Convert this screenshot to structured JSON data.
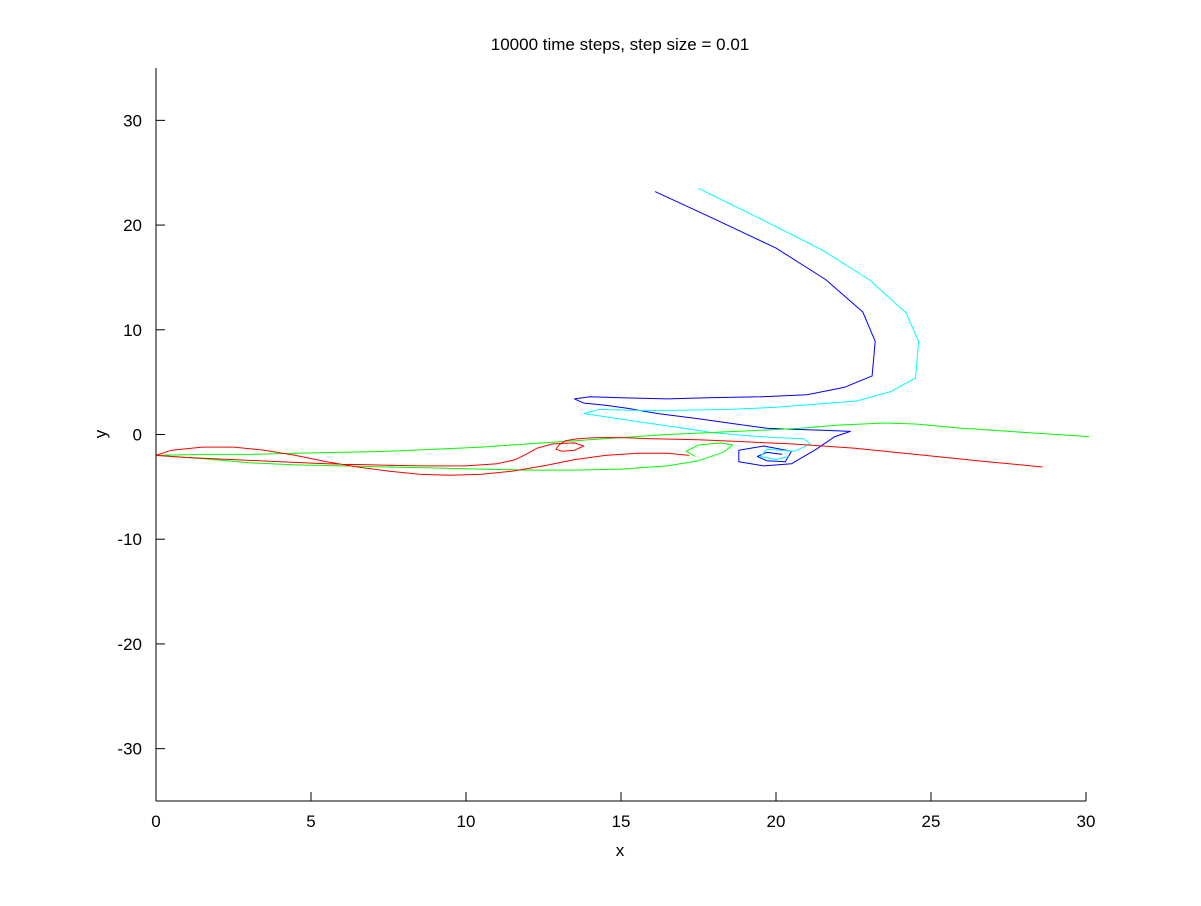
{
  "chart_data": {
    "type": "line",
    "title": "10000 time steps, step size = 0.01",
    "xlabel": "x",
    "ylabel": "y",
    "xlim": [
      0,
      30
    ],
    "ylim": [
      -35,
      35
    ],
    "xticks": [
      0,
      5,
      10,
      15,
      20,
      25,
      30
    ],
    "yticks": [
      -30,
      -20,
      -10,
      0,
      10,
      20,
      30
    ],
    "grid": false,
    "legend": "none",
    "series": [
      {
        "color": "#0000ff",
        "points": [
          [
            16.1,
            23.2
          ],
          [
            18,
            20.6
          ],
          [
            20,
            17.8
          ],
          [
            21.6,
            14.8
          ],
          [
            22.8,
            11.7
          ],
          [
            23.2,
            8.9
          ],
          [
            23.1,
            5.6
          ],
          [
            22.2,
            4.5
          ],
          [
            21,
            3.8
          ],
          [
            19.5,
            3.6
          ],
          [
            17.8,
            3.5
          ],
          [
            16.5,
            3.4
          ],
          [
            15,
            3.5
          ],
          [
            14,
            3.6
          ],
          [
            13.5,
            3.4
          ],
          [
            13.8,
            3
          ],
          [
            14.5,
            2.8
          ],
          [
            15.2,
            2.5
          ],
          [
            16.2,
            2
          ],
          [
            17.5,
            1.5
          ],
          [
            18.7,
            1
          ],
          [
            19.7,
            0.6
          ],
          [
            20.5,
            0.5
          ],
          [
            21.5,
            0.4
          ],
          [
            22.4,
            0.3
          ],
          [
            21.9,
            -0.2
          ],
          [
            21.3,
            -1.4
          ],
          [
            20.5,
            -2.8
          ],
          [
            19.6,
            -3
          ],
          [
            18.8,
            -2.6
          ],
          [
            18.8,
            -1.5
          ],
          [
            19.6,
            -1.1
          ],
          [
            20.5,
            -1.6
          ],
          [
            20.3,
            -2.6
          ],
          [
            19.7,
            -2.5
          ],
          [
            19.4,
            -2.1
          ],
          [
            19.7,
            -1.7
          ],
          [
            20.2,
            -1.9
          ]
        ]
      },
      {
        "color": "#00ffff",
        "points": [
          [
            17.5,
            23.5
          ],
          [
            19.5,
            20.6
          ],
          [
            21.5,
            17.6
          ],
          [
            23,
            14.8
          ],
          [
            24.2,
            11.6
          ],
          [
            24.6,
            8.9
          ],
          [
            24.5,
            5.4
          ],
          [
            23.7,
            4.1
          ],
          [
            22.6,
            3.2
          ],
          [
            21.3,
            2.9
          ],
          [
            20,
            2.6
          ],
          [
            18.5,
            2.4
          ],
          [
            16.8,
            2.3
          ],
          [
            15.5,
            2.3
          ],
          [
            14.3,
            2.4
          ],
          [
            13.8,
            2
          ],
          [
            14.5,
            1.7
          ],
          [
            15.6,
            1.2
          ],
          [
            16.8,
            0.7
          ],
          [
            17.9,
            0.2
          ],
          [
            19,
            -0.1
          ],
          [
            20,
            -0.3
          ],
          [
            20.9,
            -0.4
          ],
          [
            21.1,
            -0.9
          ],
          [
            20.6,
            -1.6
          ],
          [
            19.7,
            -1.4
          ],
          [
            19.5,
            -2.1
          ],
          [
            20,
            -2.4
          ],
          [
            20.4,
            -2.1
          ]
        ]
      },
      {
        "color": "#00ff00",
        "points": [
          [
            30.1,
            -0.2
          ],
          [
            28,
            0.2
          ],
          [
            26,
            0.6
          ],
          [
            24.5,
            1
          ],
          [
            23.5,
            1.1
          ],
          [
            22,
            0.9
          ],
          [
            20.8,
            0.6
          ],
          [
            19.5,
            0.4
          ],
          [
            18,
            0.2
          ],
          [
            16.5,
            0
          ],
          [
            15,
            -0.3
          ],
          [
            13.5,
            -0.6
          ],
          [
            12,
            -0.9
          ],
          [
            10.5,
            -1.2
          ],
          [
            9,
            -1.4
          ],
          [
            7.5,
            -1.6
          ],
          [
            6,
            -1.7
          ],
          [
            4.5,
            -1.8
          ],
          [
            3,
            -1.9
          ],
          [
            1.5,
            -1.9
          ],
          [
            0,
            -2
          ],
          [
            1.5,
            -2.3
          ],
          [
            3,
            -2.7
          ],
          [
            4.5,
            -2.9
          ],
          [
            6,
            -3
          ],
          [
            7.5,
            -3.1
          ],
          [
            9,
            -3.2
          ],
          [
            10.5,
            -3.3
          ],
          [
            12,
            -3.4
          ],
          [
            13.5,
            -3.4
          ],
          [
            15,
            -3.3
          ],
          [
            16.5,
            -3
          ],
          [
            17.5,
            -2.5
          ],
          [
            18.3,
            -1.7
          ],
          [
            18.6,
            -1
          ],
          [
            18.2,
            -0.8
          ],
          [
            17.5,
            -1
          ],
          [
            17.1,
            -1.6
          ],
          [
            17.4,
            -2.1
          ]
        ]
      },
      {
        "color": "#ff0000",
        "points": [
          [
            28.6,
            -3.1
          ],
          [
            26.5,
            -2.5
          ],
          [
            24.5,
            -1.9
          ],
          [
            22.5,
            -1.3
          ],
          [
            20.5,
            -0.9
          ],
          [
            19,
            -0.7
          ],
          [
            17.5,
            -0.5
          ],
          [
            16,
            -0.4
          ],
          [
            15,
            -0.3
          ],
          [
            14.2,
            -0.3
          ],
          [
            13.6,
            -0.4
          ],
          [
            13.2,
            -0.6
          ],
          [
            13,
            -1
          ],
          [
            12.9,
            -1.4
          ],
          [
            13.1,
            -1.6
          ],
          [
            13.5,
            -1.5
          ],
          [
            13.8,
            -1.1
          ],
          [
            13.5,
            -0.8
          ],
          [
            12.8,
            -0.9
          ],
          [
            12.3,
            -1.3
          ],
          [
            12,
            -1.8
          ],
          [
            11.6,
            -2.4
          ],
          [
            11,
            -2.8
          ],
          [
            10,
            -3
          ],
          [
            8.5,
            -3
          ],
          [
            7,
            -2.9
          ],
          [
            5.5,
            -2.8
          ],
          [
            4,
            -2.6
          ],
          [
            2.5,
            -2.4
          ],
          [
            1,
            -2.2
          ],
          [
            0,
            -2
          ],
          [
            0.5,
            -1.5
          ],
          [
            1.5,
            -1.2
          ],
          [
            2.5,
            -1.2
          ],
          [
            3.5,
            -1.5
          ],
          [
            4.5,
            -2
          ],
          [
            5.5,
            -2.6
          ],
          [
            6.5,
            -3.1
          ],
          [
            7.5,
            -3.5
          ],
          [
            8.5,
            -3.8
          ],
          [
            9.5,
            -3.9
          ],
          [
            10.5,
            -3.8
          ],
          [
            11.5,
            -3.5
          ],
          [
            12.5,
            -3
          ],
          [
            13.5,
            -2.4
          ],
          [
            14.5,
            -2
          ],
          [
            15.5,
            -1.8
          ],
          [
            16.5,
            -1.8
          ],
          [
            17.2,
            -2
          ]
        ]
      }
    ]
  }
}
